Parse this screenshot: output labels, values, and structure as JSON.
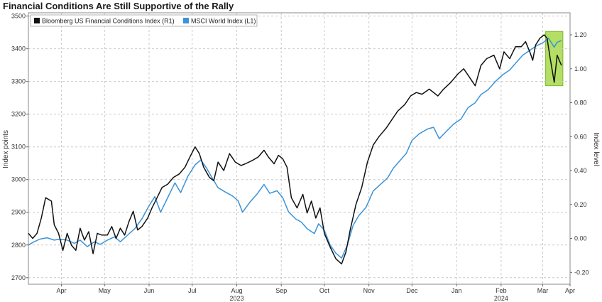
{
  "chart_data": {
    "type": "line",
    "title": "Financial Conditions Are Still Supportive of the Rally",
    "ylabel_left": "Index points",
    "ylabel_right": "Index level",
    "ylim_left": [
      2680,
      3510
    ],
    "ylim_right": [
      -0.27,
      1.33
    ],
    "yticks_left": [
      "2700",
      "2800",
      "2900",
      "3000",
      "3100",
      "3200",
      "3300",
      "3400",
      "3500"
    ],
    "yticks_right": [
      "-0.20",
      "0.00",
      "0.20",
      "0.40",
      "0.60",
      "0.80",
      "1.00",
      "1.20"
    ],
    "xlim": [
      "2023-03-23",
      "2024-04-03"
    ],
    "month_ticks": [
      {
        "label": "Apr",
        "date": "2023-04-15"
      },
      {
        "label": "May",
        "date": "2023-05-15"
      },
      {
        "label": "Jun",
        "date": "2023-06-15"
      },
      {
        "label": "Jul",
        "date": "2023-07-15"
      },
      {
        "label": "Aug",
        "date": "2023-08-15"
      },
      {
        "label": "Sep",
        "date": "2023-09-15"
      },
      {
        "label": "Oct",
        "date": "2023-10-15"
      },
      {
        "label": "Nov",
        "date": "2023-11-15"
      },
      {
        "label": "Dec",
        "date": "2023-12-15"
      },
      {
        "label": "Jan",
        "date": "2024-01-15"
      },
      {
        "label": "Feb",
        "date": "2024-02-15"
      },
      {
        "label": "Mar",
        "date": "2024-03-15"
      },
      {
        "label": "Apr",
        "date": "2024-04-03"
      }
    ],
    "year_labels": [
      {
        "label": "2023",
        "date": "2023-08-15"
      },
      {
        "label": "2024",
        "date": "2024-02-15"
      }
    ],
    "grid": true,
    "legend_position": "top-left",
    "highlight": {
      "from": "2024-03-17",
      "to": "2024-03-29",
      "color": "#a6d948"
    },
    "series": [
      {
        "name": "Bloomberg US Financial Conditions Index (R1)",
        "axis": "right",
        "color": "#111111",
        "points": [
          [
            "2023-03-23",
            0.03
          ],
          [
            "2023-03-26",
            0.0
          ],
          [
            "2023-03-29",
            0.03
          ],
          [
            "2023-04-01",
            0.12
          ],
          [
            "2023-04-04",
            0.24
          ],
          [
            "2023-04-08",
            0.22
          ],
          [
            "2023-04-10",
            0.08
          ],
          [
            "2023-04-13",
            0.03
          ],
          [
            "2023-04-16",
            -0.07
          ],
          [
            "2023-04-19",
            0.03
          ],
          [
            "2023-04-22",
            -0.04
          ],
          [
            "2023-04-25",
            -0.07
          ],
          [
            "2023-04-28",
            0.06
          ],
          [
            "2023-05-01",
            -0.01
          ],
          [
            "2023-05-04",
            0.04
          ],
          [
            "2023-05-07",
            -0.09
          ],
          [
            "2023-05-10",
            0.03
          ],
          [
            "2023-05-13",
            0.02
          ],
          [
            "2023-05-17",
            0.02
          ],
          [
            "2023-05-20",
            0.07
          ],
          [
            "2023-05-23",
            0.0
          ],
          [
            "2023-05-26",
            0.06
          ],
          [
            "2023-05-29",
            0.02
          ],
          [
            "2023-06-01",
            0.1
          ],
          [
            "2023-06-04",
            0.16
          ],
          [
            "2023-06-07",
            0.05
          ],
          [
            "2023-06-10",
            0.07
          ],
          [
            "2023-06-14",
            0.12
          ],
          [
            "2023-06-17",
            0.18
          ],
          [
            "2023-06-20",
            0.23
          ],
          [
            "2023-06-24",
            0.3
          ],
          [
            "2023-06-28",
            0.32
          ],
          [
            "2023-07-02",
            0.36
          ],
          [
            "2023-07-06",
            0.38
          ],
          [
            "2023-07-10",
            0.42
          ],
          [
            "2023-07-14",
            0.49
          ],
          [
            "2023-07-17",
            0.54
          ],
          [
            "2023-07-20",
            0.5
          ],
          [
            "2023-07-23",
            0.42
          ],
          [
            "2023-07-27",
            0.36
          ],
          [
            "2023-07-30",
            0.34
          ],
          [
            "2023-08-02",
            0.45
          ],
          [
            "2023-08-06",
            0.4
          ],
          [
            "2023-08-10",
            0.5
          ],
          [
            "2023-08-14",
            0.45
          ],
          [
            "2023-08-18",
            0.43
          ],
          [
            "2023-08-21",
            0.44
          ],
          [
            "2023-08-26",
            0.46
          ],
          [
            "2023-08-30",
            0.48
          ],
          [
            "2023-09-03",
            0.52
          ],
          [
            "2023-09-06",
            0.48
          ],
          [
            "2023-09-10",
            0.44
          ],
          [
            "2023-09-13",
            0.49
          ],
          [
            "2023-09-16",
            0.47
          ],
          [
            "2023-09-19",
            0.42
          ],
          [
            "2023-09-22",
            0.24
          ],
          [
            "2023-09-26",
            0.18
          ],
          [
            "2023-09-30",
            0.26
          ],
          [
            "2023-10-03",
            0.15
          ],
          [
            "2023-10-06",
            0.22
          ],
          [
            "2023-10-09",
            0.12
          ],
          [
            "2023-10-12",
            0.18
          ],
          [
            "2023-10-15",
            0.03
          ],
          [
            "2023-10-19",
            -0.05
          ],
          [
            "2023-10-23",
            -0.12
          ],
          [
            "2023-10-27",
            -0.15
          ],
          [
            "2023-10-30",
            -0.08
          ],
          [
            "2023-11-02",
            0.05
          ],
          [
            "2023-11-06",
            0.2
          ],
          [
            "2023-11-10",
            0.3
          ],
          [
            "2023-11-14",
            0.45
          ],
          [
            "2023-11-18",
            0.55
          ],
          [
            "2023-11-22",
            0.6
          ],
          [
            "2023-11-27",
            0.65
          ],
          [
            "2023-12-01",
            0.7
          ],
          [
            "2023-12-05",
            0.75
          ],
          [
            "2023-12-10",
            0.79
          ],
          [
            "2023-12-14",
            0.84
          ],
          [
            "2023-12-18",
            0.86
          ],
          [
            "2023-12-22",
            0.85
          ],
          [
            "2023-12-27",
            0.88
          ],
          [
            "2024-01-02",
            0.84
          ],
          [
            "2024-01-06",
            0.88
          ],
          [
            "2024-01-11",
            0.92
          ],
          [
            "2024-01-16",
            0.97
          ],
          [
            "2024-01-20",
            1.0
          ],
          [
            "2024-01-24",
            0.95
          ],
          [
            "2024-01-28",
            0.9
          ],
          [
            "2024-02-01",
            1.02
          ],
          [
            "2024-02-05",
            1.06
          ],
          [
            "2024-02-10",
            1.08
          ],
          [
            "2024-02-14",
            1.0
          ],
          [
            "2024-02-17",
            1.1
          ],
          [
            "2024-02-21",
            1.06
          ],
          [
            "2024-02-25",
            1.13
          ],
          [
            "2024-02-29",
            1.13
          ],
          [
            "2024-03-03",
            1.16
          ],
          [
            "2024-03-06",
            1.1
          ],
          [
            "2024-03-08",
            1.05
          ],
          [
            "2024-03-10",
            1.14
          ],
          [
            "2024-03-13",
            1.18
          ],
          [
            "2024-03-16",
            1.2
          ],
          [
            "2024-03-18",
            1.18
          ],
          [
            "2024-03-20",
            1.07
          ],
          [
            "2024-03-23",
            0.92
          ],
          [
            "2024-03-25",
            1.08
          ],
          [
            "2024-03-27",
            1.04
          ],
          [
            "2024-03-28",
            1.02
          ]
        ]
      },
      {
        "name": "MSCI World Index (L1)",
        "axis": "left",
        "color": "#3a93d8",
        "points": [
          [
            "2023-03-23",
            2800
          ],
          [
            "2023-03-27",
            2810
          ],
          [
            "2023-03-31",
            2818
          ],
          [
            "2023-04-05",
            2822
          ],
          [
            "2023-04-10",
            2815
          ],
          [
            "2023-04-14",
            2818
          ],
          [
            "2023-04-19",
            2815
          ],
          [
            "2023-04-24",
            2805
          ],
          [
            "2023-04-28",
            2815
          ],
          [
            "2023-05-03",
            2795
          ],
          [
            "2023-05-08",
            2810
          ],
          [
            "2023-05-12",
            2802
          ],
          [
            "2023-05-17",
            2815
          ],
          [
            "2023-05-22",
            2825
          ],
          [
            "2023-05-26",
            2810
          ],
          [
            "2023-05-31",
            2830
          ],
          [
            "2023-06-05",
            2850
          ],
          [
            "2023-06-10",
            2880
          ],
          [
            "2023-06-15",
            2920
          ],
          [
            "2023-06-19",
            2948
          ],
          [
            "2023-06-23",
            2900
          ],
          [
            "2023-06-28",
            2945
          ],
          [
            "2023-07-03",
            2990
          ],
          [
            "2023-07-07",
            2960
          ],
          [
            "2023-07-12",
            3010
          ],
          [
            "2023-07-17",
            3045
          ],
          [
            "2023-07-21",
            3060
          ],
          [
            "2023-07-25",
            3035
          ],
          [
            "2023-07-28",
            3012
          ],
          [
            "2023-08-02",
            2975
          ],
          [
            "2023-08-07",
            2962
          ],
          [
            "2023-08-12",
            2950
          ],
          [
            "2023-08-16",
            2935
          ],
          [
            "2023-08-19",
            2900
          ],
          [
            "2023-08-24",
            2930
          ],
          [
            "2023-08-29",
            2955
          ],
          [
            "2023-09-03",
            2985
          ],
          [
            "2023-09-07",
            2958
          ],
          [
            "2023-09-12",
            2966
          ],
          [
            "2023-09-16",
            2945
          ],
          [
            "2023-09-20",
            2902
          ],
          [
            "2023-09-25",
            2880
          ],
          [
            "2023-09-29",
            2870
          ],
          [
            "2023-10-03",
            2850
          ],
          [
            "2023-10-08",
            2835
          ],
          [
            "2023-10-11",
            2865
          ],
          [
            "2023-10-15",
            2845
          ],
          [
            "2023-10-19",
            2800
          ],
          [
            "2023-10-23",
            2775
          ],
          [
            "2023-10-27",
            2760
          ],
          [
            "2023-10-31",
            2800
          ],
          [
            "2023-11-04",
            2860
          ],
          [
            "2023-11-08",
            2890
          ],
          [
            "2023-11-13",
            2915
          ],
          [
            "2023-11-18",
            2965
          ],
          [
            "2023-11-23",
            2985
          ],
          [
            "2023-11-28",
            3005
          ],
          [
            "2023-12-02",
            3035
          ],
          [
            "2023-12-06",
            3055
          ],
          [
            "2023-12-11",
            3080
          ],
          [
            "2023-12-15",
            3120
          ],
          [
            "2023-12-20",
            3140
          ],
          [
            "2023-12-26",
            3155
          ],
          [
            "2023-12-30",
            3160
          ],
          [
            "2024-01-03",
            3125
          ],
          [
            "2024-01-08",
            3148
          ],
          [
            "2024-01-13",
            3170
          ],
          [
            "2024-01-18",
            3185
          ],
          [
            "2024-01-23",
            3220
          ],
          [
            "2024-01-28",
            3235
          ],
          [
            "2024-02-01",
            3260
          ],
          [
            "2024-02-06",
            3275
          ],
          [
            "2024-02-11",
            3300
          ],
          [
            "2024-02-16",
            3320
          ],
          [
            "2024-02-21",
            3335
          ],
          [
            "2024-02-25",
            3355
          ],
          [
            "2024-03-01",
            3380
          ],
          [
            "2024-03-06",
            3395
          ],
          [
            "2024-03-11",
            3410
          ],
          [
            "2024-03-15",
            3418
          ],
          [
            "2024-03-19",
            3432
          ],
          [
            "2024-03-23",
            3405
          ],
          [
            "2024-03-25",
            3420
          ],
          [
            "2024-03-28",
            3425
          ]
        ]
      }
    ]
  }
}
